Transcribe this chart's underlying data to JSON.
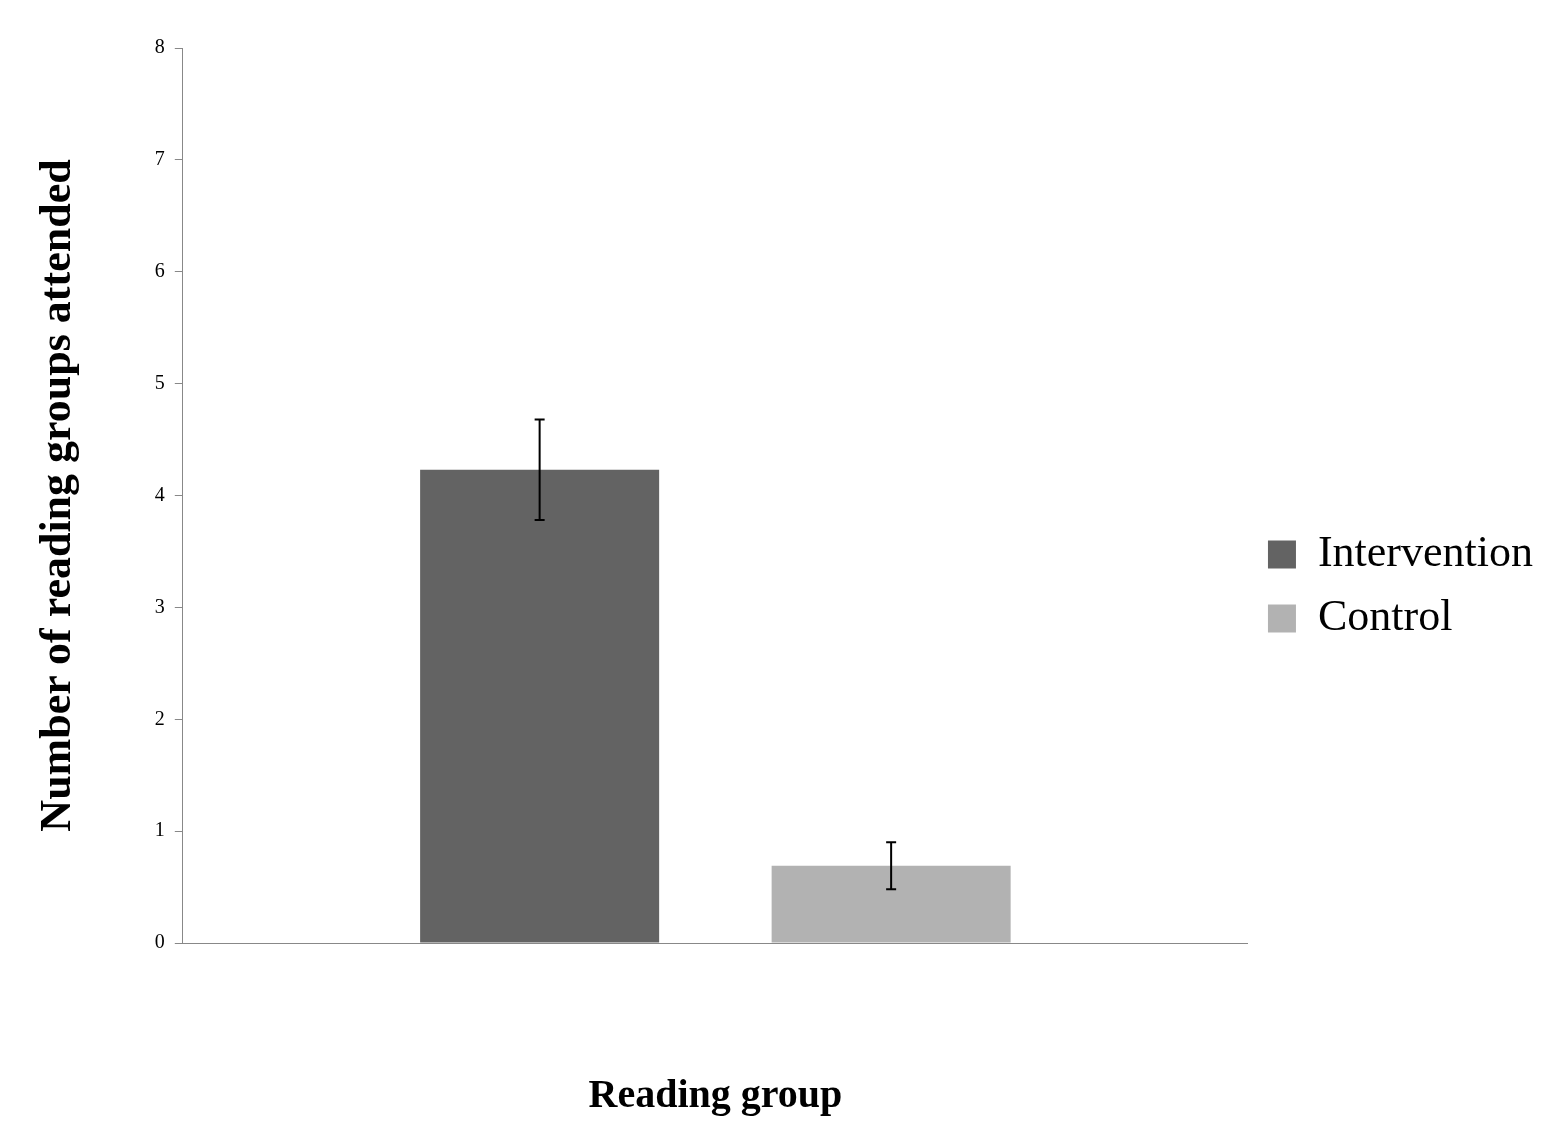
{
  "chart_data": {
    "type": "bar",
    "xlabel": "Reading group",
    "ylabel": "Number of reading groups attended",
    "categories": [
      null
    ],
    "series": [
      {
        "name": "Intervention",
        "color": "#636363",
        "values": [
          4.23
        ],
        "errors": [
          [
            3.78,
            4.68
          ]
        ]
      },
      {
        "name": "Control",
        "color": "#b2b2b2",
        "values": [
          0.69
        ],
        "errors": [
          [
            0.48,
            0.9
          ]
        ]
      }
    ],
    "ylim": [
      0,
      8
    ],
    "yticks": [
      0,
      1,
      2,
      3,
      4,
      5,
      6,
      7,
      8
    ],
    "grid": false,
    "legend": "right"
  }
}
